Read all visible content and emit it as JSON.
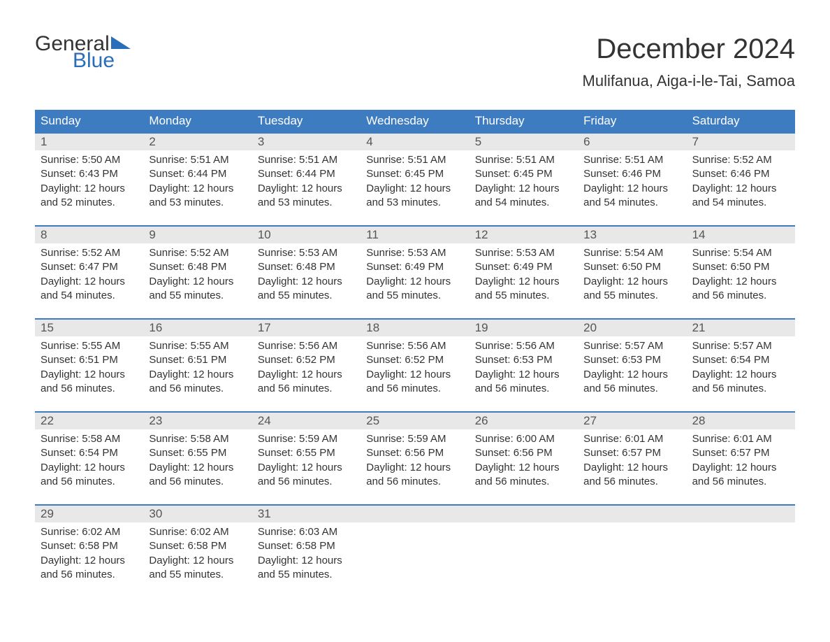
{
  "logo": {
    "text1": "General",
    "text2": "Blue",
    "triangle_color": "#2a6db8"
  },
  "title": "December 2024",
  "location": "Mulifanua, Aiga-i-le-Tai, Samoa",
  "colors": {
    "header_bg": "#3d7cc0",
    "header_text": "#ffffff",
    "daynum_bg": "#e8e8e8",
    "week_border": "#3d7cc0",
    "body_text": "#333333",
    "page_bg": "#ffffff"
  },
  "typography": {
    "title_fontsize": 40,
    "location_fontsize": 22,
    "header_fontsize": 17,
    "daynum_fontsize": 17,
    "body_fontsize": 15
  },
  "weekdays": [
    "Sunday",
    "Monday",
    "Tuesday",
    "Wednesday",
    "Thursday",
    "Friday",
    "Saturday"
  ],
  "labels": {
    "sunrise": "Sunrise:",
    "sunset": "Sunset:",
    "daylight": "Daylight:"
  },
  "weeks": [
    [
      {
        "n": "1",
        "sunrise": "5:50 AM",
        "sunset": "6:43 PM",
        "dl1": "12 hours",
        "dl2": "and 52 minutes."
      },
      {
        "n": "2",
        "sunrise": "5:51 AM",
        "sunset": "6:44 PM",
        "dl1": "12 hours",
        "dl2": "and 53 minutes."
      },
      {
        "n": "3",
        "sunrise": "5:51 AM",
        "sunset": "6:44 PM",
        "dl1": "12 hours",
        "dl2": "and 53 minutes."
      },
      {
        "n": "4",
        "sunrise": "5:51 AM",
        "sunset": "6:45 PM",
        "dl1": "12 hours",
        "dl2": "and 53 minutes."
      },
      {
        "n": "5",
        "sunrise": "5:51 AM",
        "sunset": "6:45 PM",
        "dl1": "12 hours",
        "dl2": "and 54 minutes."
      },
      {
        "n": "6",
        "sunrise": "5:51 AM",
        "sunset": "6:46 PM",
        "dl1": "12 hours",
        "dl2": "and 54 minutes."
      },
      {
        "n": "7",
        "sunrise": "5:52 AM",
        "sunset": "6:46 PM",
        "dl1": "12 hours",
        "dl2": "and 54 minutes."
      }
    ],
    [
      {
        "n": "8",
        "sunrise": "5:52 AM",
        "sunset": "6:47 PM",
        "dl1": "12 hours",
        "dl2": "and 54 minutes."
      },
      {
        "n": "9",
        "sunrise": "5:52 AM",
        "sunset": "6:48 PM",
        "dl1": "12 hours",
        "dl2": "and 55 minutes."
      },
      {
        "n": "10",
        "sunrise": "5:53 AM",
        "sunset": "6:48 PM",
        "dl1": "12 hours",
        "dl2": "and 55 minutes."
      },
      {
        "n": "11",
        "sunrise": "5:53 AM",
        "sunset": "6:49 PM",
        "dl1": "12 hours",
        "dl2": "and 55 minutes."
      },
      {
        "n": "12",
        "sunrise": "5:53 AM",
        "sunset": "6:49 PM",
        "dl1": "12 hours",
        "dl2": "and 55 minutes."
      },
      {
        "n": "13",
        "sunrise": "5:54 AM",
        "sunset": "6:50 PM",
        "dl1": "12 hours",
        "dl2": "and 55 minutes."
      },
      {
        "n": "14",
        "sunrise": "5:54 AM",
        "sunset": "6:50 PM",
        "dl1": "12 hours",
        "dl2": "and 56 minutes."
      }
    ],
    [
      {
        "n": "15",
        "sunrise": "5:55 AM",
        "sunset": "6:51 PM",
        "dl1": "12 hours",
        "dl2": "and 56 minutes."
      },
      {
        "n": "16",
        "sunrise": "5:55 AM",
        "sunset": "6:51 PM",
        "dl1": "12 hours",
        "dl2": "and 56 minutes."
      },
      {
        "n": "17",
        "sunrise": "5:56 AM",
        "sunset": "6:52 PM",
        "dl1": "12 hours",
        "dl2": "and 56 minutes."
      },
      {
        "n": "18",
        "sunrise": "5:56 AM",
        "sunset": "6:52 PM",
        "dl1": "12 hours",
        "dl2": "and 56 minutes."
      },
      {
        "n": "19",
        "sunrise": "5:56 AM",
        "sunset": "6:53 PM",
        "dl1": "12 hours",
        "dl2": "and 56 minutes."
      },
      {
        "n": "20",
        "sunrise": "5:57 AM",
        "sunset": "6:53 PM",
        "dl1": "12 hours",
        "dl2": "and 56 minutes."
      },
      {
        "n": "21",
        "sunrise": "5:57 AM",
        "sunset": "6:54 PM",
        "dl1": "12 hours",
        "dl2": "and 56 minutes."
      }
    ],
    [
      {
        "n": "22",
        "sunrise": "5:58 AM",
        "sunset": "6:54 PM",
        "dl1": "12 hours",
        "dl2": "and 56 minutes."
      },
      {
        "n": "23",
        "sunrise": "5:58 AM",
        "sunset": "6:55 PM",
        "dl1": "12 hours",
        "dl2": "and 56 minutes."
      },
      {
        "n": "24",
        "sunrise": "5:59 AM",
        "sunset": "6:55 PM",
        "dl1": "12 hours",
        "dl2": "and 56 minutes."
      },
      {
        "n": "25",
        "sunrise": "5:59 AM",
        "sunset": "6:56 PM",
        "dl1": "12 hours",
        "dl2": "and 56 minutes."
      },
      {
        "n": "26",
        "sunrise": "6:00 AM",
        "sunset": "6:56 PM",
        "dl1": "12 hours",
        "dl2": "and 56 minutes."
      },
      {
        "n": "27",
        "sunrise": "6:01 AM",
        "sunset": "6:57 PM",
        "dl1": "12 hours",
        "dl2": "and 56 minutes."
      },
      {
        "n": "28",
        "sunrise": "6:01 AM",
        "sunset": "6:57 PM",
        "dl1": "12 hours",
        "dl2": "and 56 minutes."
      }
    ],
    [
      {
        "n": "29",
        "sunrise": "6:02 AM",
        "sunset": "6:58 PM",
        "dl1": "12 hours",
        "dl2": "and 56 minutes."
      },
      {
        "n": "30",
        "sunrise": "6:02 AM",
        "sunset": "6:58 PM",
        "dl1": "12 hours",
        "dl2": "and 55 minutes."
      },
      {
        "n": "31",
        "sunrise": "6:03 AM",
        "sunset": "6:58 PM",
        "dl1": "12 hours",
        "dl2": "and 55 minutes."
      },
      null,
      null,
      null,
      null
    ]
  ]
}
